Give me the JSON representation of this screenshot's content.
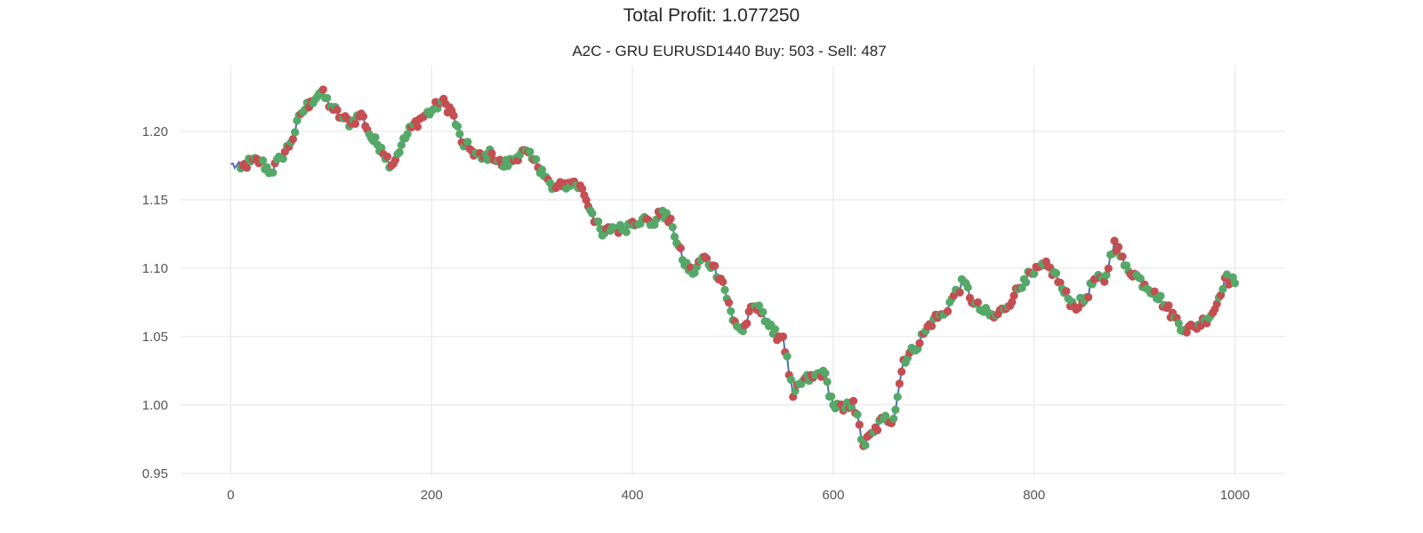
{
  "figure": {
    "suptitle": "Total Profit: 1.077250"
  },
  "chart_data": {
    "type": "line",
    "title": "A2C - GRU EURUSD1440 Buy: 503 - Sell: 487",
    "xlabel": "",
    "ylabel": "",
    "xlim": [
      -50,
      1050
    ],
    "ylim": [
      0.948,
      1.248
    ],
    "xticks": [
      0,
      200,
      400,
      600,
      800,
      1000
    ],
    "yticks": [
      0.95,
      1.0,
      1.05,
      1.1,
      1.15,
      1.2
    ],
    "grid": true,
    "colors": {
      "line": "#4c72b0",
      "sell": "#c44e52",
      "buy": "#55a868",
      "grid": "#e5e5e5"
    },
    "series": [
      {
        "role": "price",
        "x": [
          0,
          10,
          20,
          30,
          40,
          50,
          60,
          70,
          80,
          90,
          100,
          110,
          120,
          130,
          140,
          150,
          160,
          170,
          180,
          190,
          200,
          210,
          220,
          230,
          240,
          250,
          260,
          270,
          280,
          290,
          300,
          310,
          320,
          330,
          340,
          350,
          360,
          370,
          380,
          390,
          400,
          410,
          420,
          430,
          440,
          450,
          460,
          470,
          480,
          490,
          500,
          510,
          520,
          530,
          540,
          550,
          560,
          570,
          580,
          590,
          600,
          610,
          620,
          630,
          640,
          650,
          660,
          670,
          680,
          690,
          700,
          710,
          720,
          730,
          740,
          750,
          760,
          770,
          780,
          790,
          800,
          810,
          820,
          830,
          840,
          850,
          860,
          870,
          880,
          890,
          900,
          910,
          920,
          930,
          940,
          950,
          960,
          970,
          980,
          990,
          1000
        ],
        "y": [
          1.176,
          1.173,
          1.178,
          1.178,
          1.17,
          1.181,
          1.192,
          1.213,
          1.222,
          1.229,
          1.218,
          1.21,
          1.206,
          1.213,
          1.195,
          1.188,
          1.175,
          1.19,
          1.203,
          1.21,
          1.215,
          1.222,
          1.215,
          1.192,
          1.186,
          1.18,
          1.184,
          1.175,
          1.178,
          1.186,
          1.18,
          1.172,
          1.158,
          1.16,
          1.163,
          1.158,
          1.14,
          1.124,
          1.13,
          1.128,
          1.134,
          1.136,
          1.132,
          1.142,
          1.13,
          1.106,
          1.096,
          1.108,
          1.102,
          1.09,
          1.062,
          1.054,
          1.072,
          1.068,
          1.052,
          1.05,
          1.006,
          1.018,
          1.02,
          1.025,
          1.0,
          0.996,
          1.003,
          0.97,
          0.98,
          0.99,
          0.99,
          1.033,
          1.04,
          1.052,
          1.063,
          1.066,
          1.08,
          1.09,
          1.074,
          1.068,
          1.064,
          1.07,
          1.08,
          1.092,
          1.096,
          1.102,
          1.097,
          1.082,
          1.072,
          1.076,
          1.092,
          1.09,
          1.12,
          1.102,
          1.096,
          1.088,
          1.083,
          1.073,
          1.064,
          1.055,
          1.057,
          1.062,
          1.07,
          1.093,
          1.089
        ]
      }
    ]
  }
}
